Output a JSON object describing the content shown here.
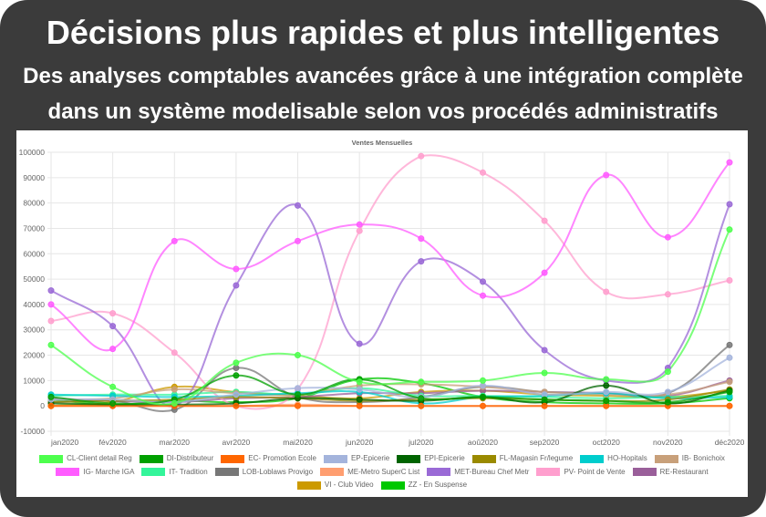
{
  "theme": {
    "card_background": "#3b3b3b",
    "heading_color": "#ffffff",
    "chart_background": "#ffffff",
    "axis_text_color": "#666666",
    "grid_color": "#e6e6e6"
  },
  "header": {
    "title": "Décisions plus rapides et plus intelligentes",
    "subtitle_lines": [
      "Des analyses comptables avancées grâce à une intégration complète",
      "dans un système modelisable selon vos procédés administratifs"
    ]
  },
  "chart_data": {
    "type": "line",
    "title": "Ventes Mensuelles",
    "categories": [
      "jan2020",
      "fév2020",
      "mar2020",
      "avr2020",
      "mai2020",
      "jun2020",
      "jul2020",
      "aoû2020",
      "sep2020",
      "oct2020",
      "nov2020",
      "déc2020"
    ],
    "ylim": [
      -10000,
      100000
    ],
    "yticks": [
      100000,
      90000,
      80000,
      70000,
      60000,
      50000,
      40000,
      30000,
      20000,
      10000,
      0,
      -10000
    ],
    "grid": true,
    "smooth": true,
    "legend_position": "bottom",
    "series": [
      {
        "name": "CL-Client detail Reg",
        "color": "#4dff4d",
        "values": [
          24000,
          7500,
          1000,
          17000,
          20000,
          9500,
          9500,
          10000,
          13000,
          10500,
          13500,
          69500
        ]
      },
      {
        "name": "DI-Distributeur",
        "color": "#00a000",
        "values": [
          3500,
          1000,
          2500,
          12000,
          4500,
          10500,
          3000,
          3500,
          2500,
          2000,
          1500,
          5500
        ]
      },
      {
        "name": "EC- Promotion Ecole",
        "color": "#ff6600",
        "values": [
          0,
          0,
          0,
          0,
          0,
          0,
          0,
          0,
          0,
          0,
          0,
          0
        ]
      },
      {
        "name": "EP-Epicerie",
        "color": "#a4b4dc",
        "values": [
          2500,
          2500,
          1500,
          4500,
          7000,
          6500,
          3500,
          8000,
          4500,
          5500,
          5500,
          19000
        ]
      },
      {
        "name": "EPI-Epicerie",
        "color": "#006400",
        "values": [
          1000,
          500,
          500,
          1000,
          3000,
          2500,
          2000,
          3500,
          1500,
          8000,
          1000,
          6000
        ]
      },
      {
        "name": "FL-Magasin Fr/legume",
        "color": "#9a8a00",
        "values": [
          1500,
          2000,
          2500,
          3500,
          3000,
          2000,
          2500,
          3000,
          2500,
          2000,
          2500,
          6500
        ]
      },
      {
        "name": "HO-Hopitals",
        "color": "#00cdcd",
        "values": [
          4500,
          4000,
          3500,
          4000,
          5000,
          5500,
          1000,
          3500,
          4000,
          5000,
          3000,
          3500
        ]
      },
      {
        "name": "IB- Bonichoix",
        "color": "#c8a07a",
        "values": [
          2500,
          3000,
          6500,
          5000,
          4500,
          8000,
          8500,
          7500,
          5500,
          4500,
          4500,
          9500
        ]
      },
      {
        "name": "IG- Marche IGA",
        "color": "#ff5cff",
        "values": [
          40000,
          22500,
          65000,
          54000,
          65000,
          71500,
          66000,
          43500,
          52500,
          91000,
          66500,
          96000
        ]
      },
      {
        "name": "IT- Tradition",
        "color": "#33f59a",
        "values": [
          4000,
          4500,
          4500,
          5500,
          4500,
          7000,
          4000,
          4000,
          3500,
          3000,
          3500,
          4000
        ]
      },
      {
        "name": "LOB-Loblaws Provigo",
        "color": "#777777",
        "values": [
          1500,
          2000,
          -1500,
          15000,
          3500,
          1500,
          3500,
          7500,
          5500,
          5000,
          5000,
          24000
        ]
      },
      {
        "name": "ME-Metro SuperC List",
        "color": "#ff9e70",
        "values": [
          0,
          0,
          0,
          0,
          500,
          0,
          0,
          0,
          0,
          0,
          0,
          0
        ]
      },
      {
        "name": "MET-Bureau Chef Metr",
        "color": "#9a6ad6",
        "values": [
          45500,
          31500,
          0,
          47500,
          79000,
          24500,
          57000,
          49000,
          22000,
          10000,
          15000,
          79500
        ]
      },
      {
        "name": "PV- Point de Vente",
        "color": "#ff9fce",
        "values": [
          33500,
          36500,
          21000,
          0,
          6500,
          69000,
          98500,
          92000,
          73000,
          45000,
          44000,
          49500
        ]
      },
      {
        "name": "RE-Restaurant",
        "color": "#9a5f9a",
        "values": [
          3000,
          2000,
          1500,
          3000,
          3500,
          5000,
          5000,
          6000,
          5500,
          5000,
          4000,
          10000
        ]
      },
      {
        "name": "VI - Club Video",
        "color": "#cc9a00",
        "values": [
          0,
          1500,
          7500,
          5500,
          4000,
          3000,
          5500,
          6000,
          4500,
          4000,
          3500,
          6000
        ]
      },
      {
        "name": "ZZ - En Suspense",
        "color": "#00c800",
        "values": [
          2500,
          500,
          2000,
          1500,
          3000,
          10500,
          9000,
          3500,
          1500,
          1000,
          1000,
          3000
        ]
      }
    ]
  }
}
